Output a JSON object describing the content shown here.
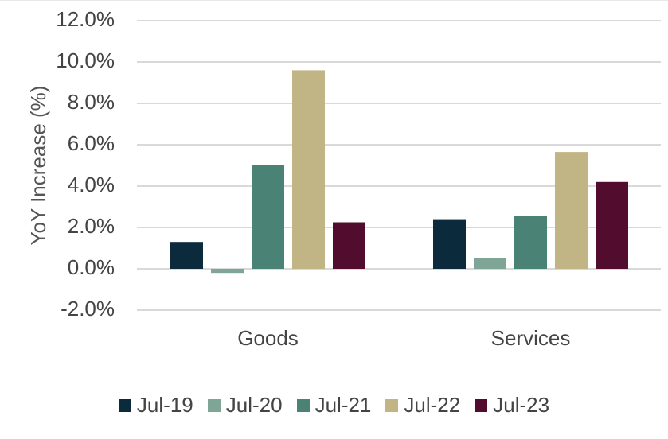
{
  "chart_data": {
    "type": "bar",
    "title": "",
    "xlabel": "",
    "ylabel": "YoY Increase (%)",
    "ylim": [
      -2.0,
      12.0
    ],
    "yticks": [
      -2.0,
      0.0,
      2.0,
      4.0,
      6.0,
      8.0,
      10.0,
      12.0
    ],
    "ytick_labels": [
      "-2.0%",
      "0.0%",
      "2.0%",
      "4.0%",
      "6.0%",
      "8.0%",
      "10.0%",
      "12.0%"
    ],
    "grid": true,
    "legend_position": "bottom",
    "categories": [
      "Goods",
      "Services"
    ],
    "series": [
      {
        "name": "Jul-19",
        "color": "#0b2a3c",
        "values": [
          1.3,
          2.4
        ]
      },
      {
        "name": "Jul-20",
        "color": "#7fa596",
        "values": [
          -0.2,
          0.5
        ]
      },
      {
        "name": "Jul-21",
        "color": "#4a8375",
        "values": [
          5.0,
          2.55
        ]
      },
      {
        "name": "Jul-22",
        "color": "#c2b585",
        "values": [
          9.6,
          5.65
        ]
      },
      {
        "name": "Jul-23",
        "color": "#520c2d",
        "values": [
          2.25,
          4.2
        ]
      }
    ]
  }
}
